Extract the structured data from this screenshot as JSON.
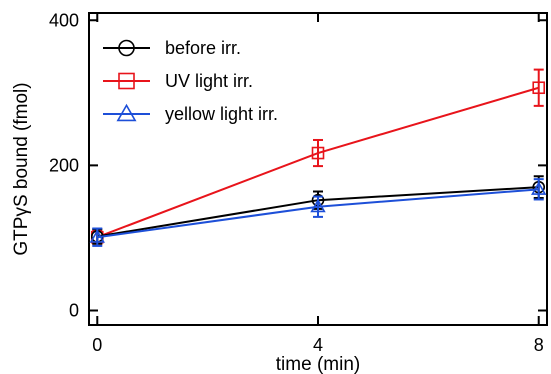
{
  "chart_data": {
    "type": "line",
    "title": "",
    "xlabel": "time (min)",
    "ylabel_parts": {
      "before": "GTP",
      "greek": "γ",
      "after": "S bound (fmol)"
    },
    "x_ticks": [
      0,
      4,
      8
    ],
    "y_ticks": [
      0,
      200,
      400
    ],
    "xlim": [
      -0.15,
      8.15
    ],
    "ylim": [
      -20,
      410
    ],
    "grid": false,
    "legend_position": "top-left",
    "series": [
      {
        "name": "before irr.",
        "marker": "circle",
        "color": "#000000",
        "x": [
          0,
          4,
          8
        ],
        "y": [
          102,
          152,
          170
        ],
        "err": [
          10,
          12,
          15
        ]
      },
      {
        "name": "UV light irr.",
        "marker": "square",
        "color": "#e8141b",
        "x": [
          0,
          4,
          8
        ],
        "y": [
          101,
          217,
          307
        ],
        "err": [
          9,
          18,
          25
        ]
      },
      {
        "name": "yellow light irr.",
        "marker": "triangle",
        "color": "#1d4fd8",
        "x": [
          0,
          4,
          8
        ],
        "y": [
          101,
          143,
          167
        ],
        "err": [
          12,
          14,
          14
        ]
      }
    ]
  }
}
